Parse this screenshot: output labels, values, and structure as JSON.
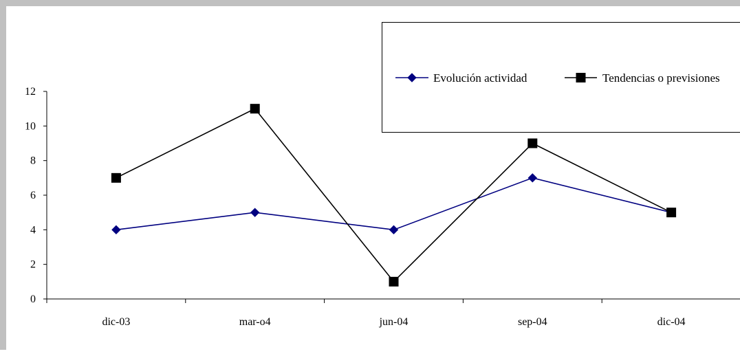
{
  "chart_data": {
    "type": "line",
    "categories": [
      "dic-03",
      "mar-o4",
      "jun-04",
      "sep-04",
      "dic-04"
    ],
    "series": [
      {
        "name": "Evolución actividad",
        "values": [
          4,
          5,
          4,
          7,
          5
        ],
        "color": "#000080",
        "marker": "diamond"
      },
      {
        "name": "Tendencias o previsiones",
        "values": [
          7,
          11,
          1,
          9,
          5
        ],
        "color": "#000000",
        "marker": "square"
      }
    ],
    "ylim": [
      0,
      12
    ],
    "yticks": [
      0,
      2,
      4,
      6,
      8,
      10,
      12
    ],
    "grid": false,
    "legend_position": "top-right"
  }
}
